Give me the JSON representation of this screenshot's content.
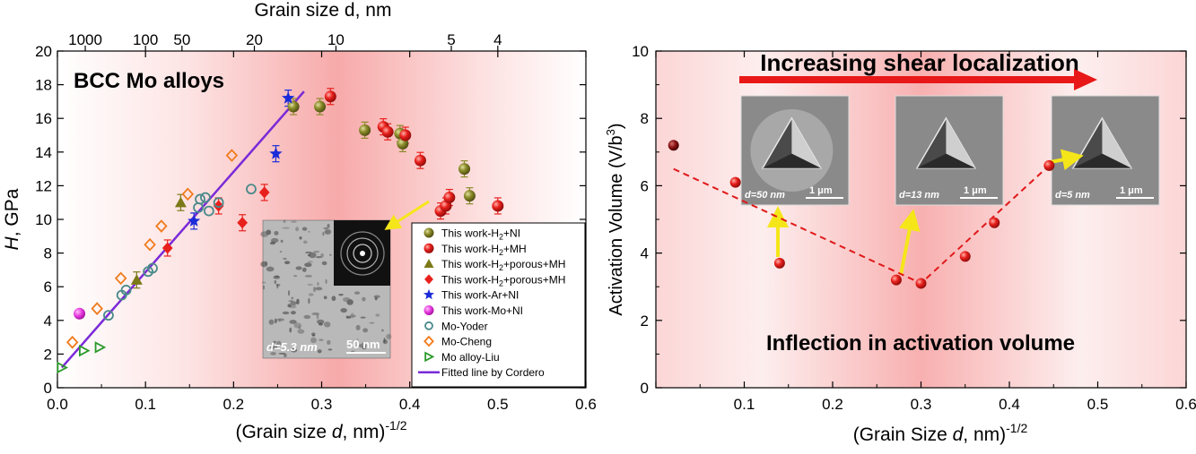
{
  "left_chart": {
    "top_axis_title": "Grain size d, nm",
    "top_ticks": [
      "1000",
      "100",
      "50",
      "20",
      "10",
      "5",
      "4"
    ],
    "xlabel_main": "(Grain size ",
    "xlabel_italic": "d",
    "xlabel_tail": ", nm)",
    "xlabel_sup": "-1/2",
    "ylabel_italic": "H",
    "ylabel_tail": ", GPa",
    "inner_title": "BCC Mo alloys",
    "inset_label": "d=5.3 nm",
    "inset_scalebar": "50 nm"
  },
  "right_chart": {
    "xlabel_main": "(Grain Size ",
    "xlabel_italic": "d",
    "xlabel_tail": ", nm)",
    "xlabel_sup": "-1/2",
    "ylabel_main": "Activation Volume (V/b",
    "ylabel_sup": "3",
    "ylabel_tail": ")",
    "arrow_label": "Increasing shear localization",
    "bottom_label": "Inflection in activation volume",
    "insets": [
      {
        "grain": "d=50 nm",
        "scale": "1 μm"
      },
      {
        "grain": "d=13 nm",
        "scale": "1 μm"
      },
      {
        "grain": "d=5 nm",
        "scale": "1 μm"
      }
    ]
  },
  "legend": [
    {
      "text": "This work-H2+NI",
      "color": "#8b8b2a",
      "marker": "circle-filled"
    },
    {
      "text": "This work-H2+MH",
      "color": "#e8201c",
      "marker": "circle-filled"
    },
    {
      "text": "This work-H2+porous+MH",
      "color": "#7c7a18",
      "marker": "triangle"
    },
    {
      "text": "This work-H2+porous+MH",
      "color": "#e8201c",
      "marker": "diamond"
    },
    {
      "text": "This work-Ar+NI",
      "color": "#1a2bd8",
      "marker": "star"
    },
    {
      "text": "This work-Mo+NI",
      "color": "#e83de0",
      "marker": "circle-filled"
    },
    {
      "text": "Mo-Yoder",
      "color": "#4a8a8a",
      "marker": "circle-open"
    },
    {
      "text": "Mo-Cheng",
      "color": "#f07a1a",
      "marker": "diamond-open"
    },
    {
      "text": "Mo alloy-Liu",
      "color": "#2a9a2a",
      "marker": "triangle-right-open"
    },
    {
      "text": "Fitted line by Cordero",
      "color": "#7a2ad8",
      "marker": "line"
    }
  ],
  "chart_data": [
    {
      "type": "scatter",
      "xlabel": "(Grain size d, nm)-1/2",
      "ylabel": "H, GPa",
      "top_xlabel": "Grain size d, nm",
      "xlim": [
        0.0,
        0.6
      ],
      "ylim": [
        0,
        20
      ],
      "xticks": [
        0.0,
        0.1,
        0.2,
        0.3,
        0.4,
        0.5,
        0.6
      ],
      "yticks": [
        0,
        2,
        4,
        6,
        8,
        10,
        12,
        14,
        16,
        18,
        20
      ],
      "grid": false,
      "legend_position": "bottom-right",
      "series": [
        {
          "name": "This work-H2+NI",
          "x": [
            0.268,
            0.298,
            0.349,
            0.389,
            0.392,
            0.462,
            0.468
          ],
          "y": [
            16.7,
            16.7,
            15.3,
            15.1,
            14.5,
            13.0,
            11.4
          ]
        },
        {
          "name": "This work-H2+MH",
          "x": [
            0.31,
            0.37,
            0.375,
            0.395,
            0.412,
            0.435,
            0.441,
            0.445,
            0.5
          ],
          "y": [
            17.3,
            15.5,
            15.2,
            15.0,
            13.5,
            10.5,
            10.8,
            11.3,
            10.8
          ]
        },
        {
          "name": "This work-H2+porous+MH",
          "x": [
            0.09,
            0.14
          ],
          "y": [
            6.4,
            11.0
          ]
        },
        {
          "name": "This work-H2+porous+MH",
          "x": [
            0.125,
            0.183,
            0.21,
            0.235
          ],
          "y": [
            8.3,
            10.8,
            9.8,
            11.6
          ]
        },
        {
          "name": "This work-Ar+NI",
          "x": [
            0.155,
            0.248,
            0.262
          ],
          "y": [
            9.9,
            13.9,
            17.2
          ]
        },
        {
          "name": "This work-Mo+NI",
          "x": [
            0.025
          ],
          "y": [
            4.4
          ]
        },
        {
          "name": "Mo-Yoder",
          "x": [
            0.058,
            0.073,
            0.078,
            0.103,
            0.108,
            0.16,
            0.162,
            0.168,
            0.172,
            0.183,
            0.22
          ],
          "y": [
            4.3,
            5.5,
            5.8,
            6.9,
            7.1,
            10.7,
            11.2,
            11.3,
            10.5,
            11.0,
            11.8
          ]
        },
        {
          "name": "Mo-Cheng",
          "x": [
            0.017,
            0.045,
            0.072,
            0.105,
            0.118,
            0.148,
            0.198
          ],
          "y": [
            2.7,
            4.7,
            6.5,
            8.5,
            9.6,
            11.5,
            13.8
          ]
        },
        {
          "name": "Mo alloy-Liu",
          "x": [
            0.005,
            0.03,
            0.048
          ],
          "y": [
            1.2,
            2.2,
            2.4
          ]
        },
        {
          "name": "Fitted line by Cordero",
          "type": "line",
          "x": [
            0.005,
            0.28
          ],
          "y": [
            1.2,
            17.6
          ]
        }
      ]
    },
    {
      "type": "scatter",
      "xlabel": "(Grain Size d, nm)-1/2",
      "ylabel": "Activation Volume (V/b3)",
      "xlim": [
        0.0,
        0.6
      ],
      "ylim": [
        0,
        10
      ],
      "xticks": [
        0.1,
        0.2,
        0.3,
        0.4,
        0.5,
        0.6
      ],
      "yticks": [
        0,
        2,
        4,
        6,
        8,
        10
      ],
      "grid": false,
      "series": [
        {
          "x": [
            0.02,
            0.09,
            0.14,
            0.272,
            0.3,
            0.35,
            0.383,
            0.445
          ],
          "y": [
            7.2,
            6.1,
            3.7,
            3.2,
            3.1,
            3.9,
            4.9,
            6.6
          ]
        }
      ],
      "trend_line": {
        "x": [
          0.02,
          0.3,
          0.445
        ],
        "y": [
          6.5,
          3.1,
          6.6
        ]
      }
    }
  ]
}
